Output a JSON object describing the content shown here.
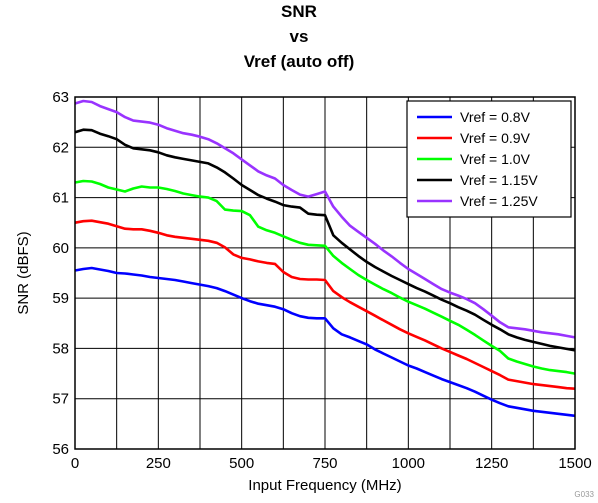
{
  "chart_data": {
    "type": "line",
    "title": [
      "SNR",
      "vs",
      "Vref (auto off)"
    ],
    "xlabel": "Input Frequency (MHz)",
    "ylabel": "SNR (dBFS)",
    "xlim": [
      0,
      1500
    ],
    "ylim": [
      56,
      63
    ],
    "xticks": [
      "0",
      "250",
      "500",
      "750",
      "1000",
      "1250",
      "1500"
    ],
    "yticks": [
      "56",
      "57",
      "58",
      "59",
      "60",
      "61",
      "62",
      "63"
    ],
    "grid": true,
    "legend_position": "top-right",
    "series": [
      {
        "name": "Vref = 0.8V",
        "color": "#0000ff",
        "points": [
          [
            0,
            59.55
          ],
          [
            25,
            59.58
          ],
          [
            50,
            59.6
          ],
          [
            75,
            59.57
          ],
          [
            100,
            59.54
          ],
          [
            125,
            59.5
          ],
          [
            150,
            59.49
          ],
          [
            175,
            59.47
          ],
          [
            200,
            59.45
          ],
          [
            225,
            59.42
          ],
          [
            250,
            59.4
          ],
          [
            275,
            59.38
          ],
          [
            300,
            59.36
          ],
          [
            325,
            59.33
          ],
          [
            350,
            59.3
          ],
          [
            375,
            59.27
          ],
          [
            400,
            59.24
          ],
          [
            425,
            59.2
          ],
          [
            450,
            59.14
          ],
          [
            475,
            59.07
          ],
          [
            500,
            59.0
          ],
          [
            525,
            58.94
          ],
          [
            550,
            58.89
          ],
          [
            575,
            58.86
          ],
          [
            600,
            58.83
          ],
          [
            625,
            58.78
          ],
          [
            650,
            58.7
          ],
          [
            675,
            58.64
          ],
          [
            700,
            58.61
          ],
          [
            725,
            58.6
          ],
          [
            750,
            58.6
          ],
          [
            775,
            58.4
          ],
          [
            800,
            58.28
          ],
          [
            825,
            58.22
          ],
          [
            850,
            58.15
          ],
          [
            875,
            58.08
          ],
          [
            900,
            57.98
          ],
          [
            925,
            57.9
          ],
          [
            950,
            57.82
          ],
          [
            975,
            57.74
          ],
          [
            1000,
            57.66
          ],
          [
            1025,
            57.6
          ],
          [
            1050,
            57.53
          ],
          [
            1075,
            57.46
          ],
          [
            1100,
            57.39
          ],
          [
            1125,
            57.33
          ],
          [
            1150,
            57.27
          ],
          [
            1175,
            57.21
          ],
          [
            1200,
            57.14
          ],
          [
            1225,
            57.06
          ],
          [
            1250,
            56.98
          ],
          [
            1275,
            56.91
          ],
          [
            1300,
            56.85
          ],
          [
            1325,
            56.82
          ],
          [
            1350,
            56.79
          ],
          [
            1375,
            56.76
          ],
          [
            1400,
            56.74
          ],
          [
            1425,
            56.72
          ],
          [
            1450,
            56.7
          ],
          [
            1475,
            56.68
          ],
          [
            1500,
            56.66
          ]
        ]
      },
      {
        "name": "Vref = 0.9V",
        "color": "#ff0000",
        "points": [
          [
            0,
            60.5
          ],
          [
            25,
            60.53
          ],
          [
            50,
            60.54
          ],
          [
            75,
            60.51
          ],
          [
            100,
            60.48
          ],
          [
            125,
            60.43
          ],
          [
            150,
            60.38
          ],
          [
            175,
            60.37
          ],
          [
            200,
            60.37
          ],
          [
            225,
            60.34
          ],
          [
            250,
            60.3
          ],
          [
            275,
            60.25
          ],
          [
            300,
            60.22
          ],
          [
            325,
            60.2
          ],
          [
            350,
            60.18
          ],
          [
            375,
            60.16
          ],
          [
            400,
            60.14
          ],
          [
            425,
            60.1
          ],
          [
            450,
            60.01
          ],
          [
            475,
            59.87
          ],
          [
            500,
            59.8
          ],
          [
            525,
            59.77
          ],
          [
            550,
            59.73
          ],
          [
            575,
            59.7
          ],
          [
            600,
            59.68
          ],
          [
            625,
            59.52
          ],
          [
            650,
            59.42
          ],
          [
            675,
            59.38
          ],
          [
            700,
            59.37
          ],
          [
            725,
            59.37
          ],
          [
            750,
            59.36
          ],
          [
            775,
            59.14
          ],
          [
            800,
            59.02
          ],
          [
            825,
            58.92
          ],
          [
            850,
            58.83
          ],
          [
            875,
            58.74
          ],
          [
            900,
            58.65
          ],
          [
            925,
            58.56
          ],
          [
            950,
            58.47
          ],
          [
            975,
            58.38
          ],
          [
            1000,
            58.3
          ],
          [
            1025,
            58.23
          ],
          [
            1050,
            58.16
          ],
          [
            1075,
            58.08
          ],
          [
            1100,
            58.0
          ],
          [
            1125,
            57.93
          ],
          [
            1150,
            57.86
          ],
          [
            1175,
            57.79
          ],
          [
            1200,
            57.71
          ],
          [
            1225,
            57.63
          ],
          [
            1250,
            57.55
          ],
          [
            1275,
            57.47
          ],
          [
            1300,
            57.38
          ],
          [
            1325,
            57.35
          ],
          [
            1350,
            57.32
          ],
          [
            1375,
            57.29
          ],
          [
            1400,
            57.27
          ],
          [
            1425,
            57.25
          ],
          [
            1450,
            57.23
          ],
          [
            1475,
            57.21
          ],
          [
            1500,
            57.2
          ]
        ]
      },
      {
        "name": "Vref = 1.0V",
        "color": "#00ff00",
        "points": [
          [
            0,
            61.3
          ],
          [
            25,
            61.33
          ],
          [
            50,
            61.32
          ],
          [
            75,
            61.27
          ],
          [
            100,
            61.2
          ],
          [
            125,
            61.16
          ],
          [
            150,
            61.12
          ],
          [
            175,
            61.18
          ],
          [
            200,
            61.22
          ],
          [
            225,
            61.2
          ],
          [
            250,
            61.2
          ],
          [
            275,
            61.17
          ],
          [
            300,
            61.13
          ],
          [
            325,
            61.08
          ],
          [
            350,
            61.05
          ],
          [
            375,
            61.02
          ],
          [
            400,
            61.0
          ],
          [
            425,
            60.93
          ],
          [
            450,
            60.76
          ],
          [
            475,
            60.74
          ],
          [
            500,
            60.73
          ],
          [
            525,
            60.65
          ],
          [
            550,
            60.42
          ],
          [
            575,
            60.35
          ],
          [
            600,
            60.3
          ],
          [
            625,
            60.23
          ],
          [
            650,
            60.16
          ],
          [
            675,
            60.1
          ],
          [
            700,
            60.06
          ],
          [
            725,
            60.05
          ],
          [
            750,
            60.04
          ],
          [
            775,
            59.84
          ],
          [
            800,
            59.7
          ],
          [
            825,
            59.58
          ],
          [
            850,
            59.46
          ],
          [
            875,
            59.36
          ],
          [
            900,
            59.27
          ],
          [
            925,
            59.18
          ],
          [
            950,
            59.1
          ],
          [
            975,
            59.01
          ],
          [
            1000,
            58.93
          ],
          [
            1025,
            58.86
          ],
          [
            1050,
            58.79
          ],
          [
            1075,
            58.71
          ],
          [
            1100,
            58.63
          ],
          [
            1125,
            58.55
          ],
          [
            1150,
            58.47
          ],
          [
            1175,
            58.37
          ],
          [
            1200,
            58.27
          ],
          [
            1225,
            58.16
          ],
          [
            1250,
            58.05
          ],
          [
            1275,
            57.95
          ],
          [
            1300,
            57.8
          ],
          [
            1325,
            57.74
          ],
          [
            1350,
            57.69
          ],
          [
            1375,
            57.64
          ],
          [
            1400,
            57.6
          ],
          [
            1425,
            57.57
          ],
          [
            1450,
            57.55
          ],
          [
            1475,
            57.53
          ],
          [
            1500,
            57.5
          ]
        ]
      },
      {
        "name": "Vref = 1.15V",
        "color": "#000000",
        "points": [
          [
            0,
            62.3
          ],
          [
            25,
            62.35
          ],
          [
            50,
            62.34
          ],
          [
            75,
            62.27
          ],
          [
            100,
            62.22
          ],
          [
            125,
            62.16
          ],
          [
            150,
            62.05
          ],
          [
            175,
            61.98
          ],
          [
            200,
            61.96
          ],
          [
            225,
            61.94
          ],
          [
            250,
            61.9
          ],
          [
            275,
            61.84
          ],
          [
            300,
            61.8
          ],
          [
            325,
            61.77
          ],
          [
            350,
            61.74
          ],
          [
            375,
            61.71
          ],
          [
            400,
            61.68
          ],
          [
            425,
            61.6
          ],
          [
            450,
            61.5
          ],
          [
            475,
            61.38
          ],
          [
            500,
            61.25
          ],
          [
            525,
            61.15
          ],
          [
            550,
            61.05
          ],
          [
            575,
            60.98
          ],
          [
            600,
            60.92
          ],
          [
            625,
            60.85
          ],
          [
            650,
            60.82
          ],
          [
            675,
            60.8
          ],
          [
            700,
            60.68
          ],
          [
            725,
            60.66
          ],
          [
            750,
            60.65
          ],
          [
            775,
            60.25
          ],
          [
            800,
            60.1
          ],
          [
            825,
            59.97
          ],
          [
            850,
            59.84
          ],
          [
            875,
            59.72
          ],
          [
            900,
            59.62
          ],
          [
            925,
            59.53
          ],
          [
            950,
            59.44
          ],
          [
            975,
            59.36
          ],
          [
            1000,
            59.28
          ],
          [
            1025,
            59.2
          ],
          [
            1050,
            59.13
          ],
          [
            1075,
            59.05
          ],
          [
            1100,
            58.97
          ],
          [
            1125,
            58.9
          ],
          [
            1150,
            58.82
          ],
          [
            1175,
            58.75
          ],
          [
            1200,
            58.67
          ],
          [
            1225,
            58.57
          ],
          [
            1250,
            58.47
          ],
          [
            1275,
            58.38
          ],
          [
            1300,
            58.28
          ],
          [
            1325,
            58.22
          ],
          [
            1350,
            58.17
          ],
          [
            1375,
            58.13
          ],
          [
            1400,
            58.09
          ],
          [
            1425,
            58.05
          ],
          [
            1450,
            58.02
          ],
          [
            1475,
            57.99
          ],
          [
            1500,
            57.96
          ]
        ]
      },
      {
        "name": "Vref = 1.25V",
        "color": "#9933ff",
        "points": [
          [
            0,
            62.87
          ],
          [
            25,
            62.92
          ],
          [
            50,
            62.9
          ],
          [
            75,
            62.82
          ],
          [
            100,
            62.76
          ],
          [
            125,
            62.7
          ],
          [
            150,
            62.6
          ],
          [
            175,
            62.53
          ],
          [
            200,
            62.51
          ],
          [
            225,
            62.49
          ],
          [
            250,
            62.45
          ],
          [
            275,
            62.38
          ],
          [
            300,
            62.33
          ],
          [
            325,
            62.28
          ],
          [
            350,
            62.25
          ],
          [
            375,
            62.21
          ],
          [
            400,
            62.16
          ],
          [
            425,
            62.08
          ],
          [
            450,
            61.98
          ],
          [
            475,
            61.88
          ],
          [
            500,
            61.76
          ],
          [
            525,
            61.64
          ],
          [
            550,
            61.52
          ],
          [
            575,
            61.44
          ],
          [
            600,
            61.38
          ],
          [
            625,
            61.25
          ],
          [
            650,
            61.15
          ],
          [
            675,
            61.06
          ],
          [
            700,
            61.02
          ],
          [
            725,
            61.07
          ],
          [
            750,
            61.12
          ],
          [
            775,
            60.82
          ],
          [
            800,
            60.62
          ],
          [
            825,
            60.44
          ],
          [
            850,
            60.32
          ],
          [
            875,
            60.2
          ],
          [
            900,
            60.08
          ],
          [
            925,
            59.95
          ],
          [
            950,
            59.83
          ],
          [
            975,
            59.7
          ],
          [
            1000,
            59.58
          ],
          [
            1025,
            59.48
          ],
          [
            1050,
            59.38
          ],
          [
            1075,
            59.28
          ],
          [
            1100,
            59.18
          ],
          [
            1125,
            59.11
          ],
          [
            1150,
            59.05
          ],
          [
            1175,
            58.98
          ],
          [
            1200,
            58.9
          ],
          [
            1225,
            58.78
          ],
          [
            1250,
            58.65
          ],
          [
            1275,
            58.52
          ],
          [
            1300,
            58.42
          ],
          [
            1325,
            58.4
          ],
          [
            1350,
            58.38
          ],
          [
            1375,
            58.35
          ],
          [
            1400,
            58.32
          ],
          [
            1425,
            58.3
          ],
          [
            1450,
            58.28
          ],
          [
            1475,
            58.25
          ],
          [
            1500,
            58.22
          ]
        ]
      }
    ]
  },
  "watermark": "G033"
}
